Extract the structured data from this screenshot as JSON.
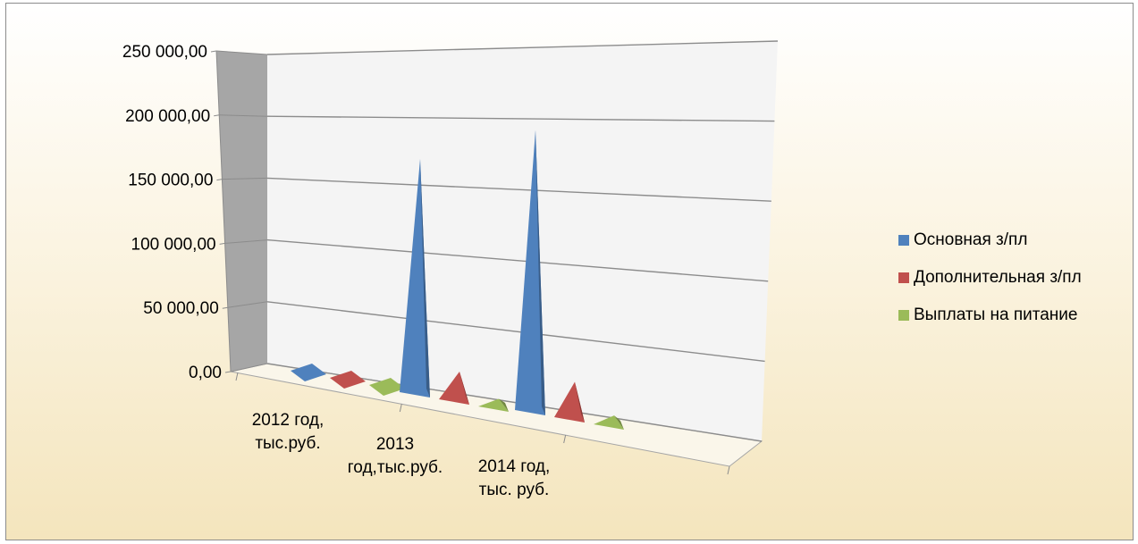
{
  "chart_data": {
    "type": "bar",
    "style": "3d-pyramid",
    "categories": [
      "2012 год, тыс.руб.",
      "2013 год,тыс.руб.",
      "2014 год, тыс. руб."
    ],
    "category_label_lines": [
      [
        "2012 год,",
        "тыс.руб."
      ],
      [
        "2013",
        "год,тыс.руб."
      ],
      [
        "2014 год,",
        "тыс. руб."
      ]
    ],
    "series": [
      {
        "name": "Основная з/пл",
        "color": "#4f81bd",
        "values": [
          0,
          185000,
          222000
        ]
      },
      {
        "name": "Дополнительная з/пл",
        "color": "#c0504d",
        "values": [
          0,
          22000,
          28000
        ]
      },
      {
        "name": "Выплаты на питание",
        "color": "#9bbb59",
        "values": [
          0,
          6000,
          7000
        ]
      }
    ],
    "y_tick_labels": [
      "0,00",
      "50 000,00",
      "100 000,00",
      "150 000,00",
      "200 000,00",
      "250 000,00"
    ],
    "ylim": [
      0,
      250000
    ],
    "grid": true,
    "legend_position": "right"
  }
}
